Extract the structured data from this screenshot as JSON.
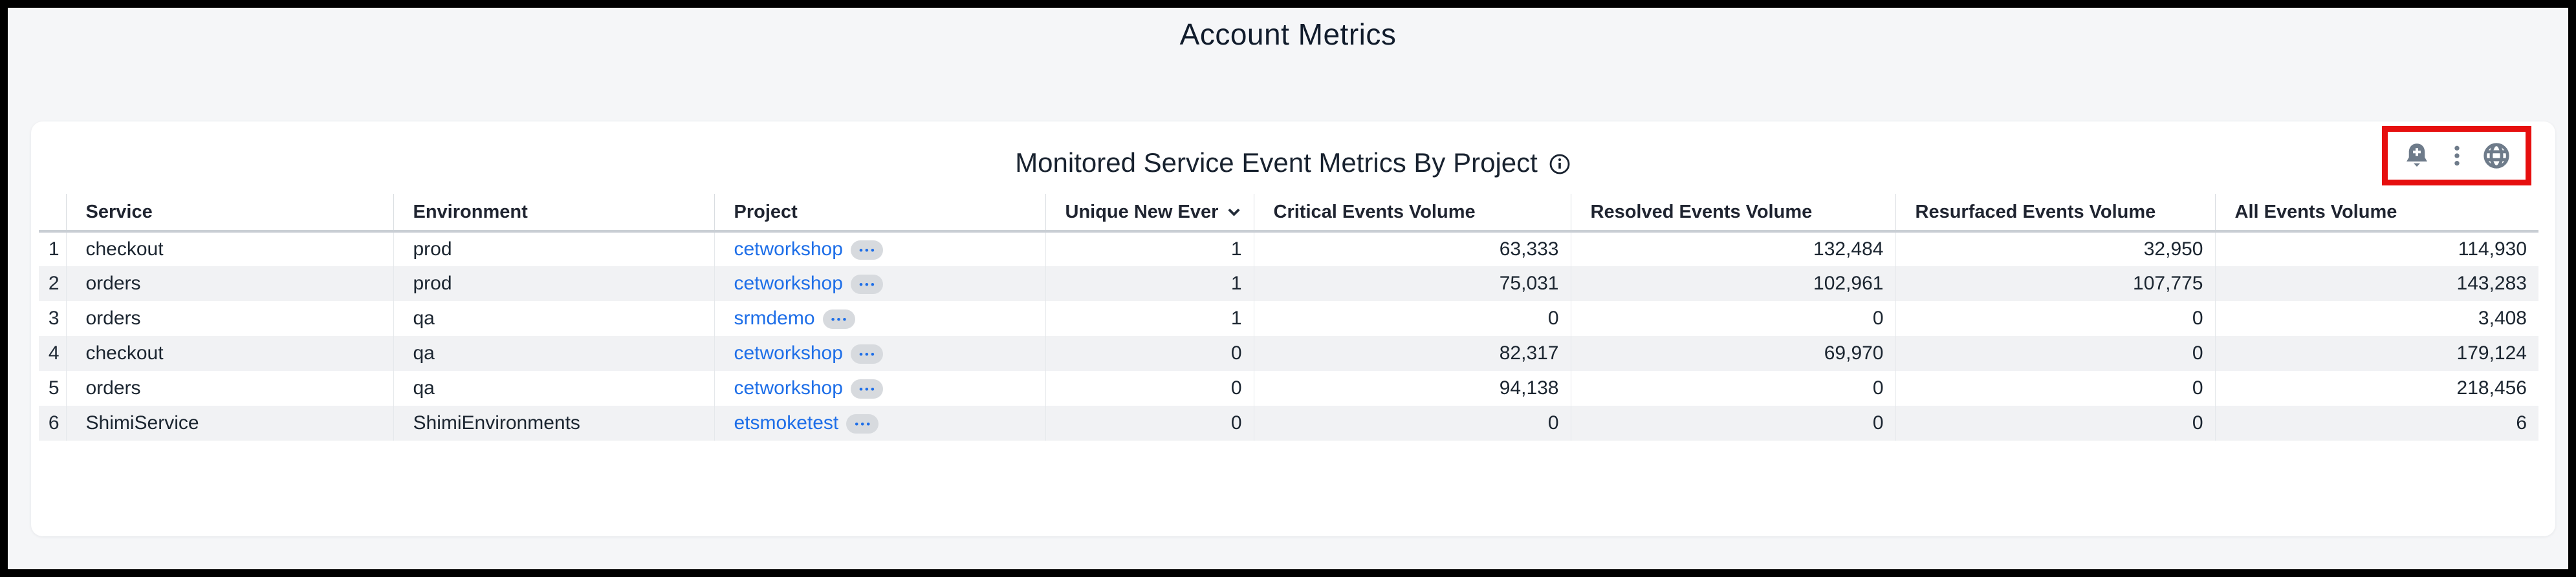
{
  "page": {
    "title": "Account Metrics"
  },
  "panel": {
    "title": "Monitored Service Event Metrics By Project",
    "toolbar": {
      "icons": [
        "add-alert-bell",
        "kebab-menu",
        "globe"
      ],
      "highlight_box_color": "#e60f0f"
    }
  },
  "table": {
    "columns": [
      {
        "label": "Service",
        "align": "left"
      },
      {
        "label": "Environment",
        "align": "left"
      },
      {
        "label": "Project",
        "align": "left"
      },
      {
        "label": "Unique New Ever",
        "align": "left",
        "sort": "desc"
      },
      {
        "label": "Critical Events Volume",
        "align": "left"
      },
      {
        "label": "Resolved Events Volume",
        "align": "left"
      },
      {
        "label": "Resurfaced Events Volume",
        "align": "left"
      },
      {
        "label": "All Events Volume",
        "align": "left"
      }
    ],
    "rows": [
      {
        "num": "1",
        "service": "checkout",
        "environment": "prod",
        "project": "cetworkshop",
        "unique_new_events": "1",
        "critical_events_volume": "63,333",
        "resolved_events_volume": "132,484",
        "resurfaced_events_volume": "32,950",
        "all_events_volume": "114,930"
      },
      {
        "num": "2",
        "service": "orders",
        "environment": "prod",
        "project": "cetworkshop",
        "unique_new_events": "1",
        "critical_events_volume": "75,031",
        "resolved_events_volume": "102,961",
        "resurfaced_events_volume": "107,775",
        "all_events_volume": "143,283"
      },
      {
        "num": "3",
        "service": "orders",
        "environment": "qa",
        "project": "srmdemo",
        "unique_new_events": "1",
        "critical_events_volume": "0",
        "resolved_events_volume": "0",
        "resurfaced_events_volume": "0",
        "all_events_volume": "3,408"
      },
      {
        "num": "4",
        "service": "checkout",
        "environment": "qa",
        "project": "cetworkshop",
        "unique_new_events": "0",
        "critical_events_volume": "82,317",
        "resolved_events_volume": "69,970",
        "resurfaced_events_volume": "0",
        "all_events_volume": "179,124"
      },
      {
        "num": "5",
        "service": "orders",
        "environment": "qa",
        "project": "cetworkshop",
        "unique_new_events": "0",
        "critical_events_volume": "94,138",
        "resolved_events_volume": "0",
        "resurfaced_events_volume": "0",
        "all_events_volume": "218,456"
      },
      {
        "num": "6",
        "service": "ShimiService",
        "environment": "ShimiEnvironments",
        "project": "etsmoketest",
        "unique_new_events": "0",
        "critical_events_volume": "0",
        "resolved_events_volume": "0",
        "resurfaced_events_volume": "0",
        "all_events_volume": "6"
      }
    ]
  },
  "colors": {
    "link_blue": "#1d6ee8",
    "icon_gray": "#6e7b8a",
    "annotation_red": "#e60f0f",
    "stripe_gray": "#f1f2f4",
    "background": "#f5f6f8"
  }
}
